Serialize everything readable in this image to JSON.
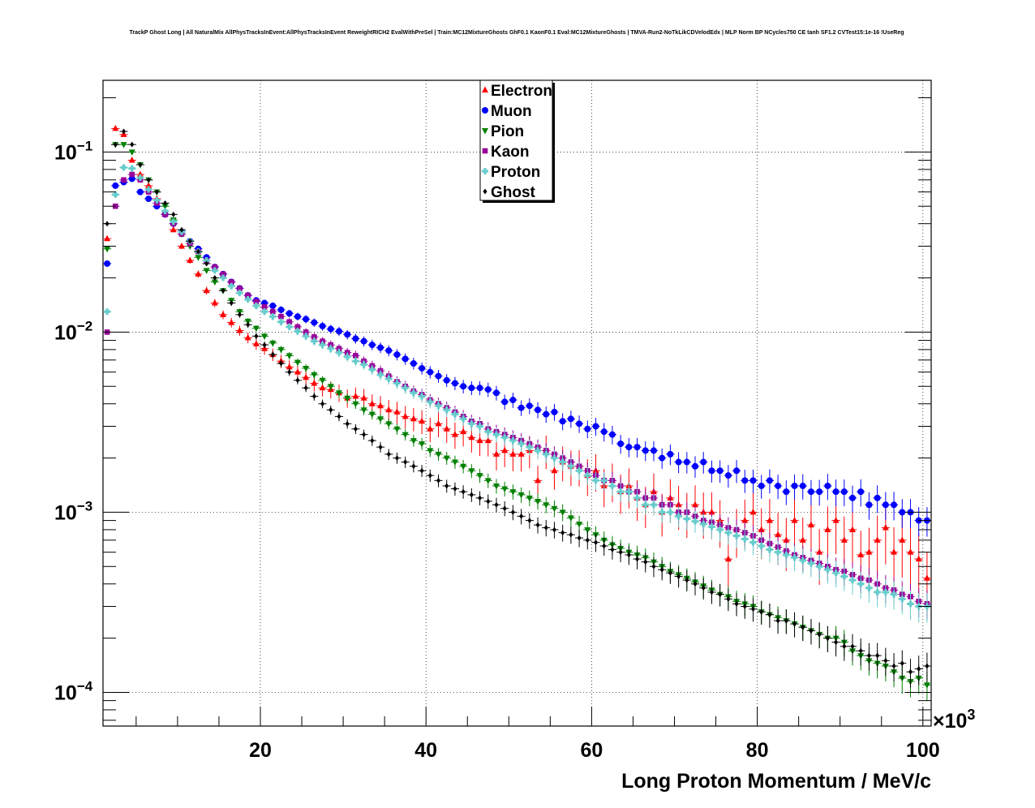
{
  "chart_data": {
    "type": "scatter",
    "title": "TrackP Ghost Long | All NaturalMix AllPhysTracksInEvent:AllPhysTracksInEvent ReweightRICH2 EvalWithPreSel | Train:MC12MixtureGhosts GhF0.1 KaonF0.1 Eval:MC12MixtureGhosts | TMVA-Run2-NoTkLikCDVelodEdx | MLP Norm BP NCycles750 CE tanh SF1.2 CVTest15:1e-16 !UseReg",
    "xlabel": "Long Proton Momentum / MeV/c",
    "x_exponent_label": "×10",
    "x_exponent_power": "3",
    "ylabel": "",
    "x_scale": "linear",
    "y_scale": "log",
    "xlim": [
      1,
      101
    ],
    "ylim": [
      6.5e-05,
      0.25
    ],
    "x_ticks": [
      20,
      40,
      60,
      80,
      100
    ],
    "x_tick_labels": [
      "20",
      "40",
      "60",
      "80",
      "100"
    ],
    "y_ticks": [
      0.0001,
      0.001,
      0.01,
      0.1
    ],
    "y_tick_labels": [
      {
        "base": "10",
        "exp": "−4"
      },
      {
        "base": "10",
        "exp": "−3"
      },
      {
        "base": "10",
        "exp": "−2"
      },
      {
        "base": "10",
        "exp": "−1"
      }
    ],
    "grid": true,
    "legend_position": "top-center",
    "x": [
      1.5,
      2.5,
      3.5,
      4.5,
      5.5,
      6.5,
      7.5,
      8.5,
      9.5,
      10.5,
      11.5,
      12.5,
      13.5,
      14.5,
      15.5,
      16.5,
      17.5,
      18.5,
      19.5,
      20.5,
      21.5,
      22.5,
      23.5,
      24.5,
      25.5,
      26.5,
      27.5,
      28.5,
      29.5,
      30.5,
      31.5,
      32.5,
      33.5,
      34.5,
      35.5,
      36.5,
      37.5,
      38.5,
      39.5,
      40.5,
      41.5,
      42.5,
      43.5,
      44.5,
      45.5,
      46.5,
      47.5,
      48.5,
      49.5,
      50.5,
      51.5,
      52.5,
      53.5,
      54.5,
      55.5,
      56.5,
      57.5,
      58.5,
      59.5,
      60.5,
      61.5,
      62.5,
      63.5,
      64.5,
      65.5,
      66.5,
      67.5,
      68.5,
      69.5,
      70.5,
      71.5,
      72.5,
      73.5,
      74.5,
      75.5,
      76.5,
      77.5,
      78.5,
      79.5,
      80.5,
      81.5,
      82.5,
      83.5,
      84.5,
      85.5,
      86.5,
      87.5,
      88.5,
      89.5,
      90.5,
      91.5,
      92.5,
      93.5,
      94.5,
      95.5,
      96.5,
      97.5,
      98.5,
      99.5,
      100.5
    ],
    "series": [
      {
        "name": "Electron",
        "color": "#ff0000",
        "marker": "triangle-up",
        "values": [
          0.033,
          0.135,
          0.125,
          0.09,
          0.075,
          0.065,
          0.055,
          0.045,
          0.037,
          0.03,
          0.025,
          0.021,
          0.017,
          0.0145,
          0.0125,
          0.0113,
          0.0102,
          0.0093,
          0.0086,
          0.0081,
          0.0075,
          0.0069,
          0.0064,
          0.006,
          0.0056,
          0.0052,
          0.0049,
          0.0048,
          0.0046,
          0.0043,
          0.0044,
          0.0043,
          0.004,
          0.0039,
          0.0037,
          0.0036,
          0.0034,
          0.0033,
          0.0032,
          0.0029,
          0.0031,
          0.0029,
          0.0027,
          0.0028,
          0.0026,
          0.0025,
          0.0025,
          0.0021,
          0.0022,
          0.0021,
          0.0021,
          0.0022,
          0.0015,
          0.0022,
          0.0017,
          0.0019,
          0.0018,
          0.0018,
          0.0016,
          0.0017,
          0.0014,
          0.0015,
          0.0013,
          0.0014,
          0.0012,
          0.0011,
          0.0013,
          0.001,
          0.0012,
          0.0011,
          0.001,
          0.0011,
          0.001,
          0.001,
          0.0009,
          0.00055,
          0.0008,
          0.0009,
          0.001,
          0.0008,
          0.0009,
          0.00075,
          0.0007,
          0.0009,
          0.0007,
          0.00085,
          0.0006,
          0.0008,
          0.0009,
          0.0007,
          0.0008,
          0.00058,
          0.0006,
          0.0007,
          0.00082,
          0.0006,
          0.0007,
          0.0006,
          0.00055,
          0.00043
        ]
      },
      {
        "name": "Muon",
        "color": "#0000ff",
        "marker": "circle",
        "values": [
          0.024,
          0.065,
          0.068,
          0.071,
          0.06,
          0.055,
          0.05,
          0.045,
          0.04,
          0.036,
          0.032,
          0.029,
          0.026,
          0.023,
          0.021,
          0.019,
          0.0175,
          0.016,
          0.015,
          0.0145,
          0.014,
          0.0133,
          0.0127,
          0.0122,
          0.0118,
          0.0113,
          0.0108,
          0.0104,
          0.0101,
          0.0097,
          0.0092,
          0.0089,
          0.0085,
          0.0082,
          0.0079,
          0.0075,
          0.0071,
          0.0067,
          0.0063,
          0.006,
          0.0057,
          0.0054,
          0.0052,
          0.005,
          0.0049,
          0.0049,
          0.0048,
          0.0046,
          0.0041,
          0.0042,
          0.0038,
          0.0039,
          0.0037,
          0.0035,
          0.0036,
          0.0032,
          0.0033,
          0.0031,
          0.0029,
          0.003,
          0.0028,
          0.0027,
          0.0024,
          0.0023,
          0.0023,
          0.0022,
          0.0022,
          0.002,
          0.0021,
          0.0019,
          0.0019,
          0.0018,
          0.0019,
          0.0017,
          0.0017,
          0.0016,
          0.0017,
          0.0015,
          0.0015,
          0.0014,
          0.0015,
          0.0014,
          0.0013,
          0.0014,
          0.0014,
          0.0013,
          0.0013,
          0.0014,
          0.0013,
          0.0013,
          0.0012,
          0.0013,
          0.0011,
          0.0012,
          0.0011,
          0.0011,
          0.001,
          0.001,
          0.0009,
          0.0009
        ]
      },
      {
        "name": "Pion",
        "color": "#008000",
        "marker": "triangle-down",
        "values": [
          0.029,
          0.11,
          0.11,
          0.1,
          0.085,
          0.07,
          0.06,
          0.05,
          0.042,
          0.035,
          0.03,
          0.026,
          0.022,
          0.019,
          0.017,
          0.015,
          0.013,
          0.0115,
          0.0105,
          0.0095,
          0.0087,
          0.008,
          0.0074,
          0.0068,
          0.0063,
          0.0058,
          0.0054,
          0.005,
          0.0046,
          0.0043,
          0.004,
          0.0037,
          0.0035,
          0.0033,
          0.0031,
          0.0029,
          0.0027,
          0.0025,
          0.0024,
          0.0022,
          0.0021,
          0.002,
          0.0019,
          0.0018,
          0.0017,
          0.0016,
          0.0015,
          0.0014,
          0.00135,
          0.0013,
          0.00125,
          0.0012,
          0.00115,
          0.0011,
          0.00105,
          0.001,
          0.00093,
          0.00086,
          0.0008,
          0.00075,
          0.0007,
          0.00066,
          0.00063,
          0.0006,
          0.00058,
          0.00056,
          0.00053,
          0.0005,
          0.00047,
          0.00045,
          0.00043,
          0.00041,
          0.00039,
          0.00037,
          0.00035,
          0.00034,
          0.00032,
          0.00031,
          0.0003,
          0.00028,
          0.00027,
          0.00026,
          0.00025,
          0.00024,
          0.00023,
          0.00022,
          0.00021,
          0.0002,
          0.0002,
          0.00019,
          0.00017,
          0.00016,
          0.00015,
          0.000145,
          0.00014,
          0.00013,
          0.00012,
          0.000115,
          0.00012,
          0.00011
        ]
      },
      {
        "name": "Kaon",
        "color": "#990099",
        "marker": "square",
        "values": [
          0.01,
          0.05,
          0.07,
          0.075,
          0.07,
          0.06,
          0.052,
          0.045,
          0.04,
          0.035,
          0.031,
          0.028,
          0.025,
          0.023,
          0.021,
          0.019,
          0.0175,
          0.016,
          0.0148,
          0.0138,
          0.013,
          0.0122,
          0.0114,
          0.0107,
          0.01,
          0.0094,
          0.0089,
          0.0085,
          0.0081,
          0.0077,
          0.0074,
          0.0069,
          0.0065,
          0.0061,
          0.0057,
          0.0053,
          0.005,
          0.0047,
          0.0045,
          0.0042,
          0.004,
          0.0038,
          0.0036,
          0.0034,
          0.0032,
          0.0031,
          0.0029,
          0.0028,
          0.0027,
          0.0026,
          0.0025,
          0.0024,
          0.0023,
          0.0022,
          0.0021,
          0.002,
          0.0019,
          0.0018,
          0.0017,
          0.0016,
          0.0015,
          0.0015,
          0.0014,
          0.0013,
          0.0013,
          0.0012,
          0.0012,
          0.0011,
          0.0011,
          0.001,
          0.001,
          0.00095,
          0.0009,
          0.00088,
          0.00085,
          0.00082,
          0.0008,
          0.00077,
          0.00074,
          0.0007,
          0.00067,
          0.00064,
          0.00061,
          0.00058,
          0.00056,
          0.00054,
          0.00052,
          0.0005,
          0.00048,
          0.00047,
          0.00045,
          0.00043,
          0.00042,
          0.0004,
          0.00038,
          0.00037,
          0.00035,
          0.00034,
          0.00032,
          0.00031
        ]
      },
      {
        "name": "Proton",
        "color": "#66cccc",
        "marker": "cross",
        "values": [
          0.013,
          0.058,
          0.082,
          0.081,
          0.072,
          0.062,
          0.054,
          0.047,
          0.041,
          0.036,
          0.032,
          0.028,
          0.025,
          0.022,
          0.02,
          0.018,
          0.0165,
          0.0152,
          0.014,
          0.013,
          0.0122,
          0.0114,
          0.0107,
          0.0101,
          0.0095,
          0.0089,
          0.0085,
          0.0081,
          0.0077,
          0.0073,
          0.0069,
          0.0066,
          0.0062,
          0.0058,
          0.0055,
          0.0052,
          0.0049,
          0.0046,
          0.0044,
          0.0041,
          0.0039,
          0.0037,
          0.0035,
          0.0033,
          0.0031,
          0.003,
          0.0028,
          0.0027,
          0.0026,
          0.0025,
          0.0024,
          0.0023,
          0.0022,
          0.0021,
          0.002,
          0.0019,
          0.0018,
          0.0017,
          0.0016,
          0.0015,
          0.0015,
          0.0014,
          0.0013,
          0.0013,
          0.0012,
          0.0011,
          0.0011,
          0.001,
          0.001,
          0.00095,
          0.00092,
          0.00089,
          0.00086,
          0.00083,
          0.0008,
          0.00077,
          0.00074,
          0.00071,
          0.00068,
          0.00065,
          0.00062,
          0.0006,
          0.00058,
          0.00056,
          0.00054,
          0.00052,
          0.0005,
          0.00048,
          0.00046,
          0.00044,
          0.00042,
          0.0004,
          0.00038,
          0.00036,
          0.00036,
          0.00035,
          0.00033,
          0.00031,
          0.0003,
          0.0003
        ]
      },
      {
        "name": "Ghost",
        "color": "#000000",
        "marker": "diamond",
        "values": [
          0.04,
          0.11,
          0.13,
          0.11,
          0.085,
          0.07,
          0.06,
          0.052,
          0.045,
          0.037,
          0.032,
          0.028,
          0.024,
          0.02,
          0.017,
          0.0145,
          0.0125,
          0.011,
          0.0095,
          0.0085,
          0.0075,
          0.0067,
          0.006,
          0.0054,
          0.0049,
          0.0044,
          0.004,
          0.0037,
          0.0034,
          0.0031,
          0.0029,
          0.0027,
          0.0025,
          0.0023,
          0.0021,
          0.002,
          0.0019,
          0.0018,
          0.0017,
          0.0016,
          0.0015,
          0.0014,
          0.00135,
          0.0013,
          0.00125,
          0.0012,
          0.00115,
          0.0011,
          0.00105,
          0.001,
          0.00095,
          0.0009,
          0.00085,
          0.00082,
          0.0008,
          0.00077,
          0.00075,
          0.00072,
          0.0007,
          0.00068,
          0.00065,
          0.00062,
          0.0006,
          0.00058,
          0.00055,
          0.00053,
          0.0005,
          0.00048,
          0.00046,
          0.00044,
          0.00042,
          0.0004,
          0.00038,
          0.00036,
          0.00035,
          0.00033,
          0.00031,
          0.0003,
          0.00029,
          0.00028,
          0.00027,
          0.00025,
          0.00025,
          0.00024,
          0.00023,
          0.00022,
          0.00021,
          0.0002,
          0.00019,
          0.00018,
          0.00018,
          0.00017,
          0.00016,
          0.00016,
          0.00015,
          0.00014,
          0.000145,
          0.00013,
          0.000135,
          0.00014
        ]
      }
    ]
  }
}
